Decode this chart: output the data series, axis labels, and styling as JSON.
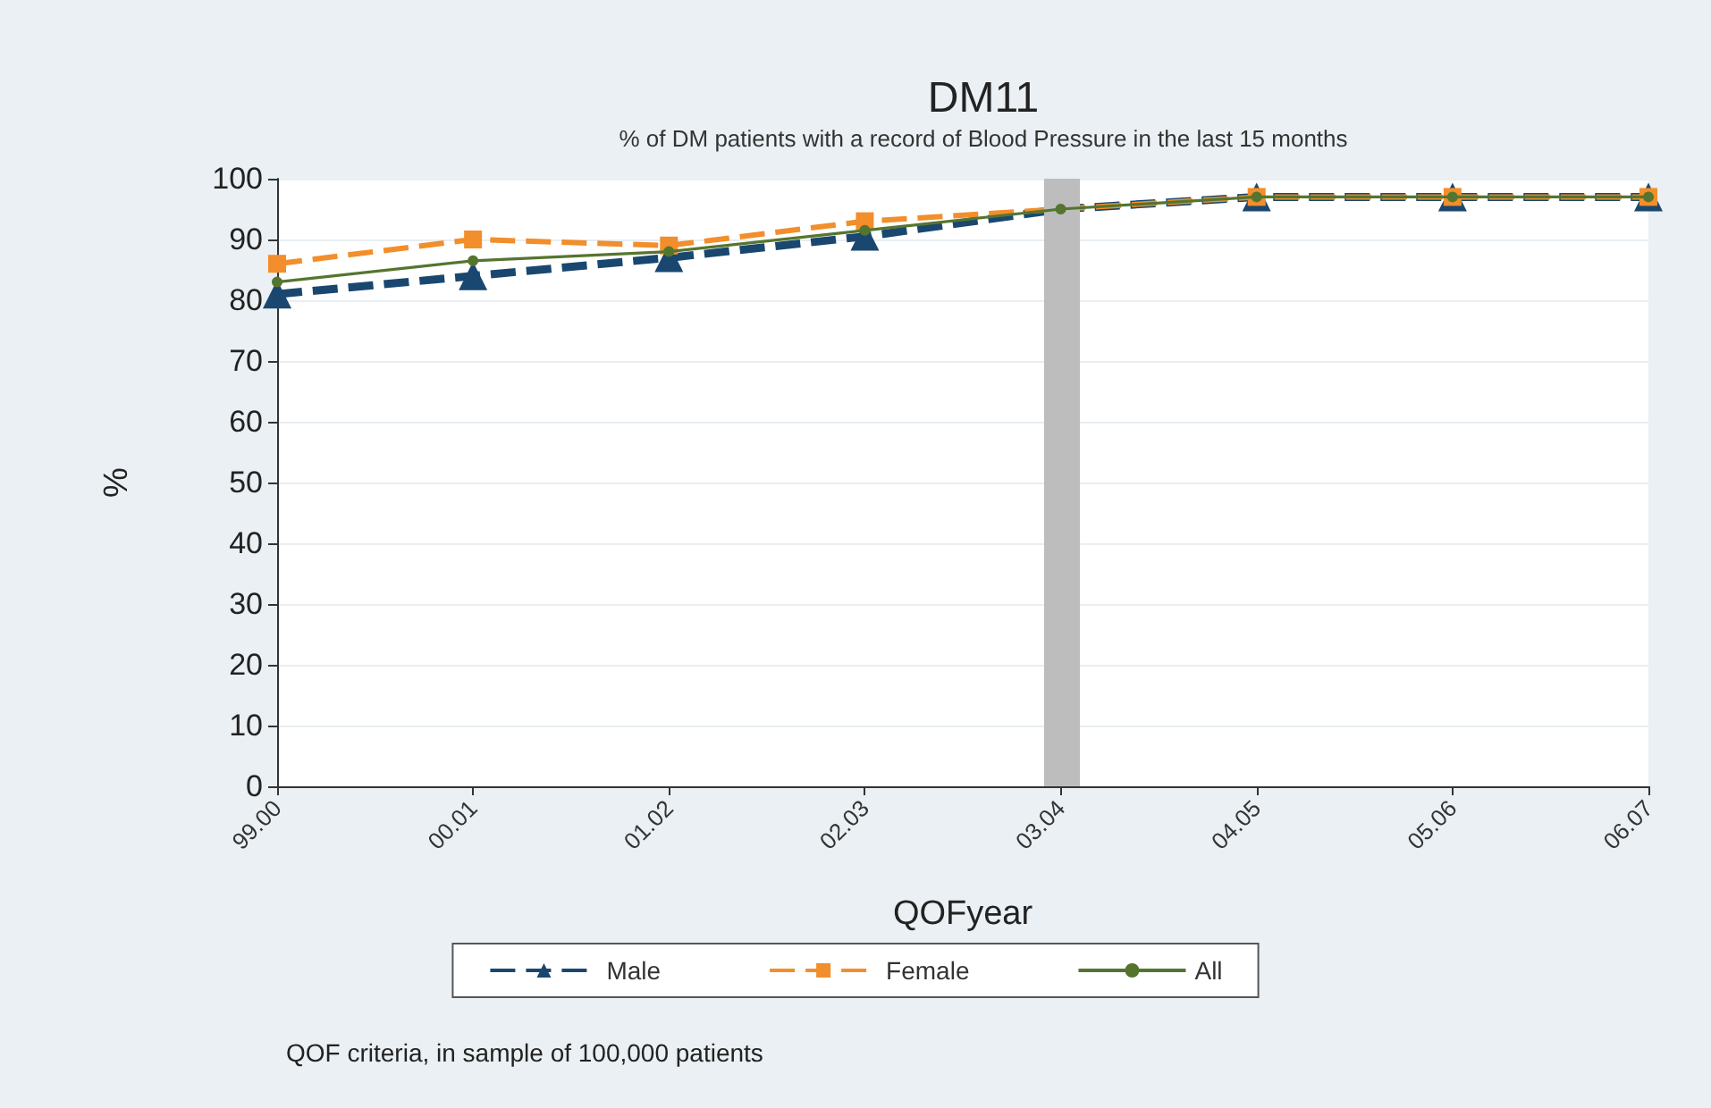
{
  "chart_data": {
    "type": "line",
    "title": "DM11",
    "subtitle": "% of DM patients with a record of Blood Pressure in the last 15 months",
    "xlabel": "QOFyear",
    "ylabel": "%",
    "categories": [
      "99.00",
      "00.01",
      "01.02",
      "02.03",
      "03.04",
      "04.05",
      "05.06",
      "06.07"
    ],
    "series": [
      {
        "name": "Male",
        "color": "#1a476f",
        "marker": "triangle",
        "line_style": "dashed",
        "values": [
          81,
          84,
          87,
          90.5,
          95,
          97,
          97,
          97
        ]
      },
      {
        "name": "Female",
        "color": "#f28e2b",
        "marker": "square",
        "line_style": "dashed",
        "values": [
          86,
          90,
          89,
          93,
          95,
          97,
          97,
          97
        ]
      },
      {
        "name": "All",
        "color": "#55752f",
        "marker": "circle",
        "line_style": "solid",
        "values": [
          83,
          86.5,
          88,
          91.5,
          95,
          97,
          97,
          97
        ]
      }
    ],
    "ylim": [
      0,
      100
    ],
    "yticks": [
      0,
      10,
      20,
      30,
      40,
      50,
      60,
      70,
      80,
      90,
      100
    ],
    "grid": "y",
    "legend": "bottom",
    "ref_lines": [
      {
        "axis": "x",
        "value": "03.04",
        "color": "#bdbdbd"
      }
    ],
    "annotations": [
      "QOF criteria, in sample of 100,000 patients"
    ]
  }
}
